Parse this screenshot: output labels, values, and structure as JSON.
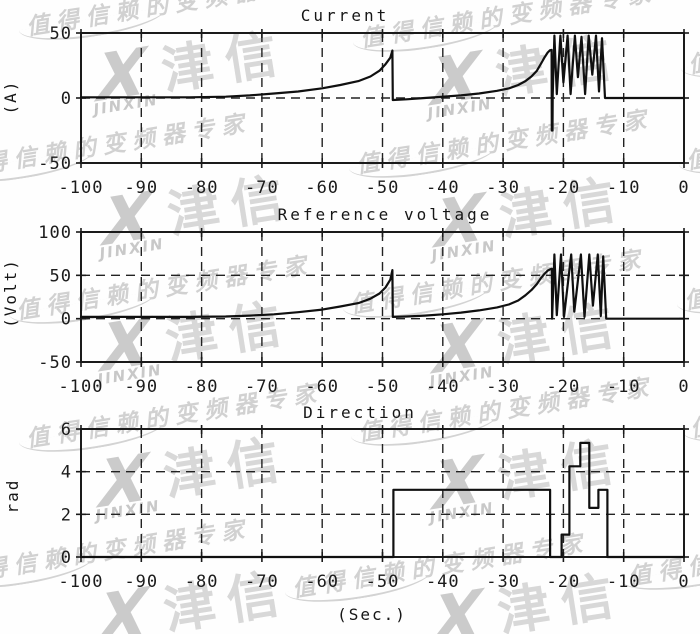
{
  "watermark": {
    "script_text": "值得信赖的变频器专家",
    "logo_cn": "津信",
    "logo_en": "JINXIN",
    "color": "#c8c8c8"
  },
  "chart_data": [
    {
      "type": "line",
      "title": "Current",
      "ylabel": "(A)",
      "xlabel": "",
      "xlim": [
        -100,
        0
      ],
      "ylim": [
        -50,
        50
      ],
      "yticks": [
        50,
        0,
        -50
      ],
      "xticks": [
        -100,
        -90,
        -80,
        -70,
        -60,
        -50,
        -40,
        -30,
        -20,
        -10,
        0
      ],
      "y_dashed": [
        0
      ],
      "x_dashed": [
        -90,
        -80,
        -70,
        -60,
        -50,
        -40,
        -30,
        -20,
        -10
      ],
      "grid": true,
      "legend": "none",
      "series": [
        {
          "name": "current",
          "points": [
            [
              -100,
              0.5
            ],
            [
              -82,
              0.5
            ],
            [
              -76,
              1
            ],
            [
              -72,
              2
            ],
            [
              -68,
              3.5
            ],
            [
              -64,
              5
            ],
            [
              -60,
              7.5
            ],
            [
              -57,
              10
            ],
            [
              -54,
              13
            ],
            [
              -52,
              16.5
            ],
            [
              -50.5,
              21
            ],
            [
              -49.5,
              26
            ],
            [
              -48.7,
              31
            ],
            [
              -48.35,
              36.5
            ],
            [
              -48.3,
              -1.5
            ],
            [
              -46,
              -1
            ],
            [
              -43,
              0
            ],
            [
              -40,
              1
            ],
            [
              -37,
              2
            ],
            [
              -34,
              3.5
            ],
            [
              -31,
              5.5
            ],
            [
              -29,
              7.5
            ],
            [
              -27.5,
              10
            ],
            [
              -26.3,
              13
            ],
            [
              -25.3,
              16.5
            ],
            [
              -24.4,
              21
            ],
            [
              -23.7,
              26.5
            ],
            [
              -23.1,
              31.5
            ],
            [
              -22.6,
              35
            ],
            [
              -22.2,
              36.8
            ],
            [
              -21.95,
              37
            ],
            [
              -21.93,
              -25
            ],
            [
              -21.8,
              -25
            ],
            [
              -21.78,
              2
            ],
            [
              -21.5,
              48
            ],
            [
              -21.1,
              3
            ],
            [
              -20.5,
              48
            ],
            [
              -20.0,
              12
            ],
            [
              -19.3,
              48
            ],
            [
              -18.8,
              3
            ],
            [
              -18.1,
              48
            ],
            [
              -17.6,
              16
            ],
            [
              -17.0,
              47
            ],
            [
              -16.4,
              3
            ],
            [
              -15.8,
              48
            ],
            [
              -15.2,
              18
            ],
            [
              -14.6,
              48
            ],
            [
              -14.1,
              5
            ],
            [
              -13.6,
              46
            ],
            [
              -13.1,
              0
            ],
            [
              0,
              0
            ]
          ]
        }
      ]
    },
    {
      "type": "line",
      "title": "Reference voltage",
      "ylabel": "(Volt)",
      "xlabel": "",
      "xlim": [
        -100,
        0
      ],
      "ylim": [
        -50,
        100
      ],
      "yticks": [
        100,
        50,
        0,
        -50
      ],
      "xticks": [
        -100,
        -90,
        -80,
        -70,
        -60,
        -50,
        -40,
        -30,
        -20,
        -10,
        0
      ],
      "y_dashed": [
        50,
        0
      ],
      "x_dashed": [
        -90,
        -80,
        -70,
        -60,
        -50,
        -40,
        -30,
        -20,
        -10
      ],
      "grid": true,
      "legend": "none",
      "series": [
        {
          "name": "reference-voltage",
          "points": [
            [
              -100,
              2
            ],
            [
              -82,
              2
            ],
            [
              -76,
              2.5
            ],
            [
              -72,
              3.5
            ],
            [
              -68,
              5
            ],
            [
              -64,
              7.5
            ],
            [
              -60,
              10.5
            ],
            [
              -57,
              14
            ],
            [
              -54,
              18
            ],
            [
              -52,
              23
            ],
            [
              -50.5,
              29
            ],
            [
              -49.5,
              36
            ],
            [
              -48.7,
              45
            ],
            [
              -48.35,
              56
            ],
            [
              -48.3,
              2
            ],
            [
              -46,
              2.5
            ],
            [
              -43,
              3.5
            ],
            [
              -40,
              5
            ],
            [
              -37,
              7
            ],
            [
              -34,
              9.5
            ],
            [
              -31,
              13
            ],
            [
              -29,
              16.5
            ],
            [
              -27.5,
              21
            ],
            [
              -26.3,
              27
            ],
            [
              -25.3,
              33
            ],
            [
              -24.4,
              40
            ],
            [
              -23.7,
              47
            ],
            [
              -23.1,
              52
            ],
            [
              -22.6,
              55.5
            ],
            [
              -22.2,
              57
            ],
            [
              -21.9,
              57.5
            ],
            [
              -21.88,
              0
            ],
            [
              -21.5,
              74
            ],
            [
              -21.1,
              4
            ],
            [
              -20.4,
              74
            ],
            [
              -19.9,
              2
            ],
            [
              -18.7,
              74
            ],
            [
              -18.2,
              8
            ],
            [
              -17.1,
              74
            ],
            [
              -16.5,
              2
            ],
            [
              -15.7,
              74
            ],
            [
              -15.1,
              15
            ],
            [
              -14.3,
              74
            ],
            [
              -13.8,
              3
            ],
            [
              -13.4,
              72
            ],
            [
              -12.9,
              0
            ],
            [
              0,
              0
            ]
          ]
        }
      ]
    },
    {
      "type": "line",
      "title": "Direction",
      "ylabel": "rad",
      "xlabel": "(Sec.)",
      "xlim": [
        -100,
        0
      ],
      "ylim": [
        0,
        6
      ],
      "yticks": [
        6,
        4,
        2,
        0
      ],
      "xticks": [
        -100,
        -90,
        -80,
        -70,
        -60,
        -50,
        -40,
        -30,
        -20,
        -10,
        0
      ],
      "y_dashed": [
        4,
        2
      ],
      "x_dashed": [
        -90,
        -80,
        -70,
        -60,
        -50,
        -40,
        -30,
        -20,
        -10
      ],
      "grid": true,
      "legend": "none",
      "series": [
        {
          "name": "direction",
          "points": [
            [
              -100,
              0
            ],
            [
              -48.2,
              0
            ],
            [
              -48.2,
              3.15
            ],
            [
              -22.2,
              3.15
            ],
            [
              -22.2,
              0
            ],
            [
              -20.3,
              0
            ],
            [
              -20.3,
              1.05
            ],
            [
              -19.0,
              1.05
            ],
            [
              -19.0,
              4.25
            ],
            [
              -17.2,
              4.25
            ],
            [
              -17.2,
              5.35
            ],
            [
              -15.7,
              5.35
            ],
            [
              -15.7,
              2.3
            ],
            [
              -14.2,
              2.3
            ],
            [
              -14.2,
              3.15
            ],
            [
              -12.7,
              3.15
            ],
            [
              -12.7,
              0
            ],
            [
              0,
              0
            ]
          ]
        }
      ]
    }
  ]
}
